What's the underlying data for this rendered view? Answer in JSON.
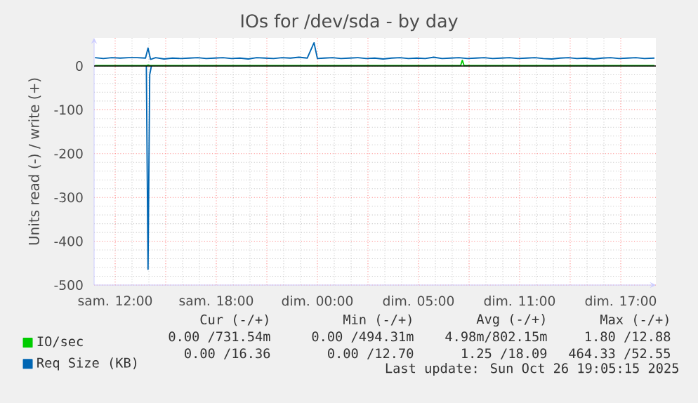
{
  "chart_data": {
    "type": "line",
    "title": "IOs for /dev/sda - by day",
    "ylabel": "Units read (-) / write (+)",
    "xlim": [
      "2025-10-25T08:45",
      "2025-10-26T18:05"
    ],
    "ylim": [
      -500,
      64
    ],
    "xticks": [
      {
        "value": "2025-10-25T10:00",
        "label": "sam. 12:00"
      },
      {
        "value": "2025-10-25T13:00",
        "label": null
      },
      {
        "value": "2025-10-25T16:00",
        "label": "sam. 18:00"
      },
      {
        "value": "2025-10-25T19:00",
        "label": null
      },
      {
        "value": "2025-10-25T22:00",
        "label": "dim. 00:00"
      },
      {
        "value": "2025-10-26T01:00",
        "label": null
      },
      {
        "value": "2025-10-26T04:00",
        "label": "dim. 05:00"
      },
      {
        "value": "2025-10-26T07:00",
        "label": null
      },
      {
        "value": "2025-10-26T10:00",
        "label": "dim. 11:00"
      },
      {
        "value": "2025-10-26T13:00",
        "label": null
      },
      {
        "value": "2025-10-26T16:00",
        "label": "dim. 17:00"
      }
    ],
    "yticks": [
      -500,
      -400,
      -300,
      -200,
      -100,
      0
    ],
    "grid": true,
    "legend": "bottom left",
    "ref_lines": [
      {
        "axis": "y",
        "value": 0,
        "color": "#000000"
      }
    ],
    "series": [
      {
        "name": "IO/sec",
        "color": "#00cc00",
        "x": [
          "2025-10-25T08:48",
          "2025-10-25T11:54",
          "2025-10-25T11:57",
          "2025-10-25T12:03",
          "2025-10-26T06:30",
          "2025-10-26T06:36",
          "2025-10-26T06:42",
          "2025-10-26T18:00"
        ],
        "values": [
          1,
          1,
          2,
          1,
          1,
          13,
          1,
          1
        ]
      },
      {
        "name": "Req Size (KB)",
        "color": "#0066b3",
        "x": [
          "2025-10-25T08:48",
          "2025-10-25T09:18",
          "2025-10-25T09:48",
          "2025-10-25T10:18",
          "2025-10-25T10:48",
          "2025-10-25T11:18",
          "2025-10-25T11:48",
          "2025-10-25T11:57",
          "2025-10-25T12:06",
          "2025-10-25T12:24",
          "2025-10-25T12:54",
          "2025-10-25T13:24",
          "2025-10-25T13:54",
          "2025-10-25T14:24",
          "2025-10-25T14:54",
          "2025-10-25T15:24",
          "2025-10-25T15:54",
          "2025-10-25T16:24",
          "2025-10-25T16:54",
          "2025-10-25T17:24",
          "2025-10-25T17:54",
          "2025-10-25T18:24",
          "2025-10-25T18:54",
          "2025-10-25T19:24",
          "2025-10-25T19:54",
          "2025-10-25T20:24",
          "2025-10-25T20:54",
          "2025-10-25T21:24",
          "2025-10-25T21:48",
          "2025-10-25T22:00",
          "2025-10-25T22:24",
          "2025-10-25T22:54",
          "2025-10-25T23:24",
          "2025-10-25T23:54",
          "2025-10-26T00:24",
          "2025-10-26T00:54",
          "2025-10-26T01:24",
          "2025-10-26T01:54",
          "2025-10-26T02:24",
          "2025-10-26T02:54",
          "2025-10-26T03:24",
          "2025-10-26T03:54",
          "2025-10-26T04:24",
          "2025-10-26T04:54",
          "2025-10-26T05:24",
          "2025-10-26T05:54",
          "2025-10-26T06:24",
          "2025-10-26T06:54",
          "2025-10-26T07:24",
          "2025-10-26T07:54",
          "2025-10-26T08:24",
          "2025-10-26T08:54",
          "2025-10-26T09:24",
          "2025-10-26T09:54",
          "2025-10-26T10:24",
          "2025-10-26T10:54",
          "2025-10-26T11:24",
          "2025-10-26T11:54",
          "2025-10-26T12:24",
          "2025-10-26T12:54",
          "2025-10-26T13:24",
          "2025-10-26T13:54",
          "2025-10-26T14:24",
          "2025-10-26T14:54",
          "2025-10-26T15:24",
          "2025-10-26T15:54",
          "2025-10-26T16:24",
          "2025-10-26T16:54",
          "2025-10-26T17:24",
          "2025-10-26T18:00"
        ],
        "values": [
          19,
          17,
          19,
          18,
          19,
          19,
          18,
          41,
          15,
          19,
          16,
          18,
          17,
          18,
          19,
          17,
          18,
          19,
          17,
          18,
          16,
          19,
          18,
          17,
          19,
          18,
          20,
          18,
          53,
          17,
          18,
          19,
          17,
          18,
          19,
          17,
          18,
          16,
          18,
          19,
          17,
          18,
          17,
          20,
          17,
          18,
          19,
          17,
          18,
          19,
          17,
          18,
          19,
          17,
          18,
          19,
          17,
          16,
          18,
          19,
          17,
          18,
          16,
          18,
          19,
          17,
          18,
          19,
          17,
          18
        ]
      },
      {
        "color": "#0066b3",
        "x": [
          "2025-10-25T11:51",
          "2025-10-25T11:57",
          "2025-10-25T12:03",
          "2025-10-25T12:09"
        ],
        "values": [
          0,
          -464,
          -20,
          0
        ]
      }
    ],
    "annotations": [
      "Cur (-/+)",
      "Min (-/+)",
      "Avg (-/+)",
      "Max (-/+)",
      "0.00 /731.54m",
      "0.00 /494.31m",
      "4.98m/802.15m",
      "1.80 /12.88",
      "0.00 /16.36",
      "0.00 /12.70",
      "1.25 /18.09",
      "464.33 /52.55",
      "Last update: Sun Oct 26 19:05:15 2025"
    ]
  }
}
